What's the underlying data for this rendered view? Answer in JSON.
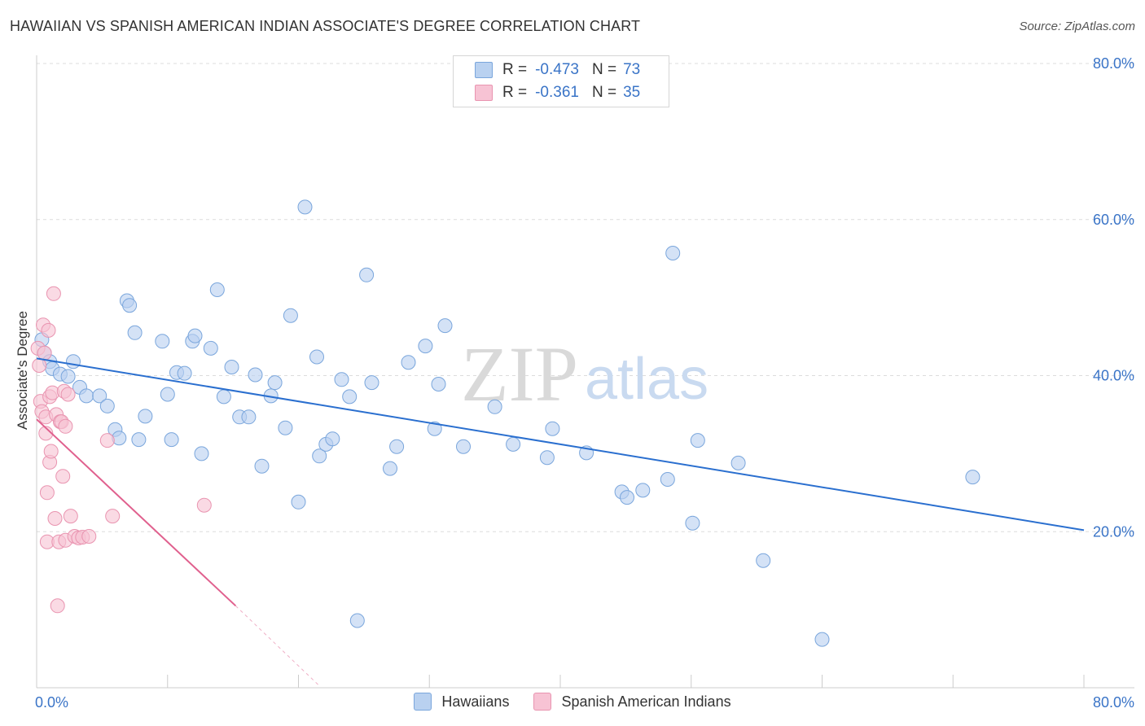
{
  "title": "HAWAIIAN VS SPANISH AMERICAN INDIAN ASSOCIATE'S DEGREE CORRELATION CHART",
  "source": "Source: ZipAtlas.com",
  "watermark": {
    "zip": "ZIP",
    "atlas": "atlas"
  },
  "legend": {
    "series": [
      {
        "r_label": "R =",
        "r_value": "-0.473",
        "n_label": "N =",
        "n_value": "73"
      },
      {
        "r_label": "R =",
        "r_value": "-0.361",
        "n_label": "N =",
        "n_value": "35"
      }
    ]
  },
  "colors": {
    "blue_fill": "#b9d1f0",
    "blue_stroke": "#7aa6dc",
    "blue_line": "#2a6fcf",
    "pink_fill": "#f7c3d4",
    "pink_stroke": "#e994b0",
    "pink_line": "#e0608e",
    "grid": "#dcdcdc",
    "axis_text": "#3a74c7"
  },
  "chart_data": {
    "type": "scatter",
    "title": "HAWAIIAN VS SPANISH AMERICAN INDIAN ASSOCIATE'S DEGREE CORRELATION CHART",
    "xlabel": "",
    "ylabel": "Associate's Degree",
    "xlim": [
      0,
      80
    ],
    "ylim": [
      0,
      80
    ],
    "x_tick_labels": [
      "0.0%",
      "80.0%"
    ],
    "y_tick_labels": [
      "20.0%",
      "40.0%",
      "60.0%",
      "80.0%"
    ],
    "y_ticks": [
      20,
      40,
      60,
      80
    ],
    "grid": true,
    "series": [
      {
        "name": "Hawaiians",
        "trend": {
          "x": [
            0,
            80
          ],
          "y": [
            42.2,
            20.2
          ]
        },
        "points": [
          [
            0.4,
            44.6
          ],
          [
            0.6,
            42.9
          ],
          [
            1.0,
            41.8
          ],
          [
            1.2,
            40.9
          ],
          [
            1.8,
            40.2
          ],
          [
            2.4,
            39.9
          ],
          [
            2.8,
            41.8
          ],
          [
            3.3,
            38.5
          ],
          [
            3.8,
            37.4
          ],
          [
            4.8,
            37.4
          ],
          [
            5.4,
            36.1
          ],
          [
            6.0,
            33.1
          ],
          [
            6.3,
            32.0
          ],
          [
            6.9,
            49.6
          ],
          [
            7.1,
            49.0
          ],
          [
            7.5,
            45.5
          ],
          [
            7.8,
            31.8
          ],
          [
            8.3,
            34.8
          ],
          [
            9.6,
            44.4
          ],
          [
            10.0,
            37.6
          ],
          [
            10.3,
            31.8
          ],
          [
            10.7,
            40.4
          ],
          [
            11.3,
            40.3
          ],
          [
            11.9,
            44.4
          ],
          [
            12.1,
            45.1
          ],
          [
            12.6,
            30.0
          ],
          [
            13.3,
            43.5
          ],
          [
            13.8,
            51.0
          ],
          [
            14.3,
            37.3
          ],
          [
            14.9,
            41.1
          ],
          [
            15.5,
            34.7
          ],
          [
            16.2,
            34.7
          ],
          [
            16.7,
            40.1
          ],
          [
            17.2,
            28.4
          ],
          [
            17.9,
            37.4
          ],
          [
            18.2,
            39.1
          ],
          [
            19.0,
            33.3
          ],
          [
            19.4,
            47.7
          ],
          [
            20.0,
            23.8
          ],
          [
            20.5,
            61.6
          ],
          [
            21.4,
            42.4
          ],
          [
            21.6,
            29.7
          ],
          [
            22.1,
            31.2
          ],
          [
            22.6,
            31.9
          ],
          [
            23.3,
            39.5
          ],
          [
            23.9,
            37.3
          ],
          [
            24.5,
            8.6
          ],
          [
            25.2,
            52.9
          ],
          [
            25.6,
            39.1
          ],
          [
            27.0,
            28.1
          ],
          [
            27.5,
            30.9
          ],
          [
            28.4,
            41.7
          ],
          [
            29.7,
            43.8
          ],
          [
            30.4,
            33.2
          ],
          [
            30.7,
            38.9
          ],
          [
            31.2,
            46.4
          ],
          [
            32.6,
            30.9
          ],
          [
            35.0,
            36.0
          ],
          [
            36.4,
            31.2
          ],
          [
            39.0,
            29.5
          ],
          [
            39.4,
            33.2
          ],
          [
            42.0,
            30.1
          ],
          [
            44.7,
            25.1
          ],
          [
            45.1,
            24.4
          ],
          [
            46.3,
            25.3
          ],
          [
            48.2,
            26.7
          ],
          [
            48.6,
            55.7
          ],
          [
            50.1,
            21.1
          ],
          [
            50.5,
            31.7
          ],
          [
            53.6,
            28.8
          ],
          [
            55.5,
            16.3
          ],
          [
            60.0,
            6.2
          ],
          [
            71.5,
            27.0
          ]
        ]
      },
      {
        "name": "Spanish American Indians",
        "trend": {
          "x": [
            0,
            15.2
          ],
          "y": [
            34.4,
            10.5
          ]
        },
        "trend_dashed": {
          "x": [
            15.2,
            21.5
          ],
          "y": [
            10.5,
            0.4
          ]
        },
        "points": [
          [
            0.1,
            43.5
          ],
          [
            0.2,
            41.3
          ],
          [
            0.3,
            36.7
          ],
          [
            0.4,
            35.4
          ],
          [
            0.5,
            46.5
          ],
          [
            0.6,
            42.9
          ],
          [
            0.7,
            34.7
          ],
          [
            0.7,
            32.6
          ],
          [
            0.8,
            25.0
          ],
          [
            0.8,
            18.7
          ],
          [
            0.9,
            45.8
          ],
          [
            1.0,
            37.3
          ],
          [
            1.0,
            28.9
          ],
          [
            1.1,
            30.3
          ],
          [
            1.2,
            37.8
          ],
          [
            1.3,
            50.5
          ],
          [
            1.4,
            21.7
          ],
          [
            1.5,
            35.0
          ],
          [
            1.6,
            10.5
          ],
          [
            1.7,
            18.7
          ],
          [
            1.8,
            34.1
          ],
          [
            1.9,
            34.1
          ],
          [
            2.0,
            27.1
          ],
          [
            2.1,
            38.0
          ],
          [
            2.2,
            33.5
          ],
          [
            2.2,
            18.9
          ],
          [
            2.4,
            37.6
          ],
          [
            2.6,
            22.0
          ],
          [
            2.9,
            19.4
          ],
          [
            3.2,
            19.2
          ],
          [
            3.5,
            19.3
          ],
          [
            4.0,
            19.4
          ],
          [
            5.4,
            31.7
          ],
          [
            5.8,
            22.0
          ],
          [
            12.8,
            23.4
          ]
        ]
      }
    ]
  },
  "bottom_legend": {
    "items": [
      "Hawaiians",
      "Spanish American Indians"
    ]
  }
}
